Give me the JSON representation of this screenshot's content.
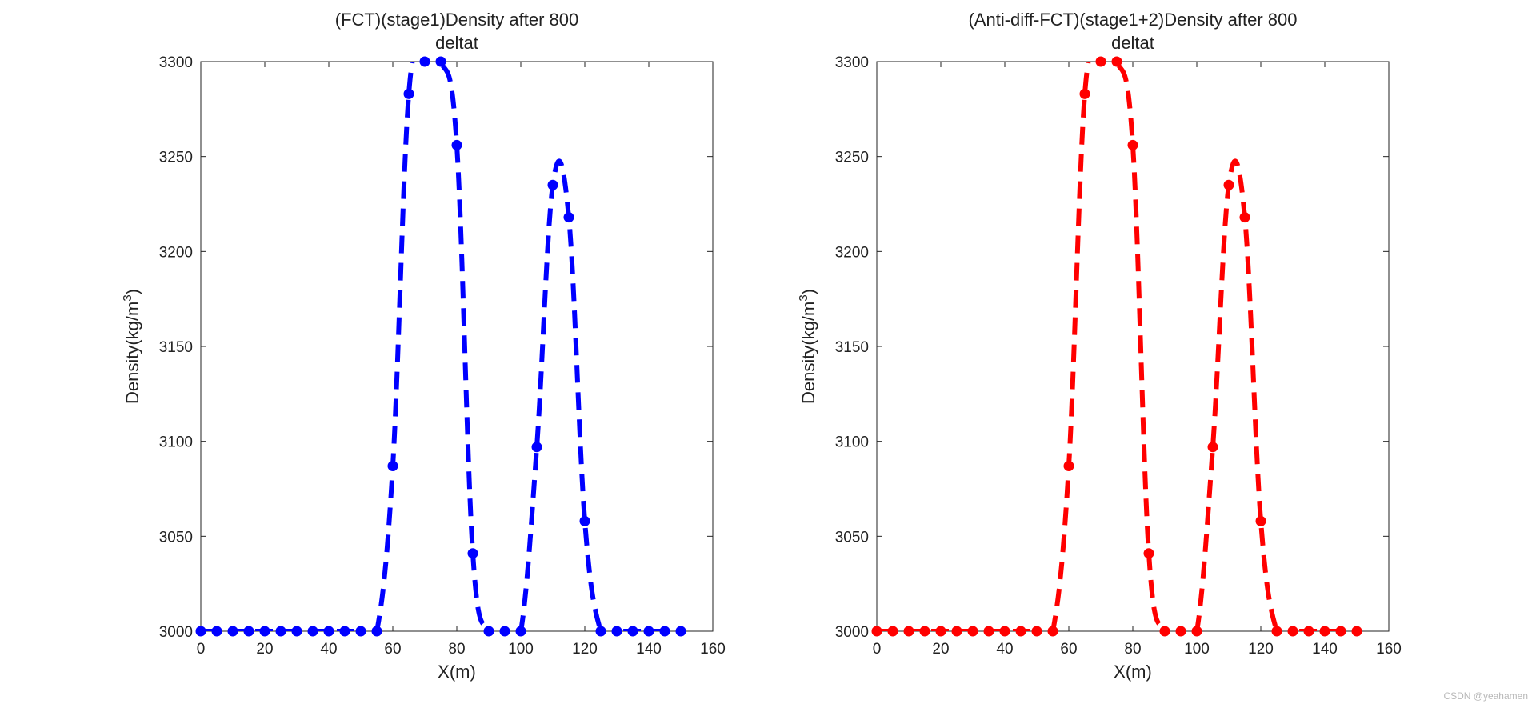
{
  "watermark": "CSDN @yeahamen",
  "chart_data": [
    {
      "type": "line",
      "title_lines": [
        "(FCT)(stage1)Density after 800",
        "deltat"
      ],
      "xlabel": "X(m)",
      "ylabel_base": "Density(kg/m",
      "ylabel_sup": "3",
      "ylabel_end": ")",
      "xlim": [
        0,
        160
      ],
      "ylim": [
        3000,
        3300
      ],
      "xticks": [
        0,
        20,
        40,
        60,
        80,
        100,
        120,
        140,
        160
      ],
      "yticks": [
        3000,
        3050,
        3100,
        3150,
        3200,
        3250,
        3300
      ],
      "grid": false,
      "color": "#0000ff",
      "line_style": "dashed",
      "marker": "circle",
      "x": [
        0,
        5,
        10,
        15,
        20,
        25,
        30,
        35,
        40,
        45,
        50,
        55,
        60,
        65,
        70,
        75,
        80,
        85,
        90,
        95,
        100,
        105,
        110,
        115,
        120,
        125,
        130,
        135,
        140,
        145,
        150
      ],
      "y": [
        3000,
        3000,
        3000,
        3000,
        3000,
        3000,
        3000,
        3000,
        3000,
        3000,
        3000,
        3000,
        3087,
        3283,
        3300,
        3300,
        3256,
        3041,
        3000,
        3000,
        3000,
        3097,
        3235,
        3218,
        3058,
        3000,
        3000,
        3000,
        3000,
        3000,
        3000
      ]
    },
    {
      "type": "line",
      "title_lines": [
        "(Anti-diff-FCT)(stage1+2)Density after 800",
        "deltat"
      ],
      "xlabel": "X(m)",
      "ylabel_base": "Density(kg/m",
      "ylabel_sup": "3",
      "ylabel_end": ")",
      "xlim": [
        0,
        160
      ],
      "ylim": [
        3000,
        3300
      ],
      "xticks": [
        0,
        20,
        40,
        60,
        80,
        100,
        120,
        140,
        160
      ],
      "yticks": [
        3000,
        3050,
        3100,
        3150,
        3200,
        3250,
        3300
      ],
      "grid": false,
      "color": "#ff0000",
      "line_style": "dashed",
      "marker": "circle",
      "x": [
        0,
        5,
        10,
        15,
        20,
        25,
        30,
        35,
        40,
        45,
        50,
        55,
        60,
        65,
        70,
        75,
        80,
        85,
        90,
        95,
        100,
        105,
        110,
        115,
        120,
        125,
        130,
        135,
        140,
        145,
        150
      ],
      "y": [
        3000,
        3000,
        3000,
        3000,
        3000,
        3000,
        3000,
        3000,
        3000,
        3000,
        3000,
        3000,
        3087,
        3283,
        3300,
        3300,
        3256,
        3041,
        3000,
        3000,
        3000,
        3097,
        3235,
        3218,
        3058,
        3000,
        3000,
        3000,
        3000,
        3000,
        3000
      ]
    }
  ]
}
